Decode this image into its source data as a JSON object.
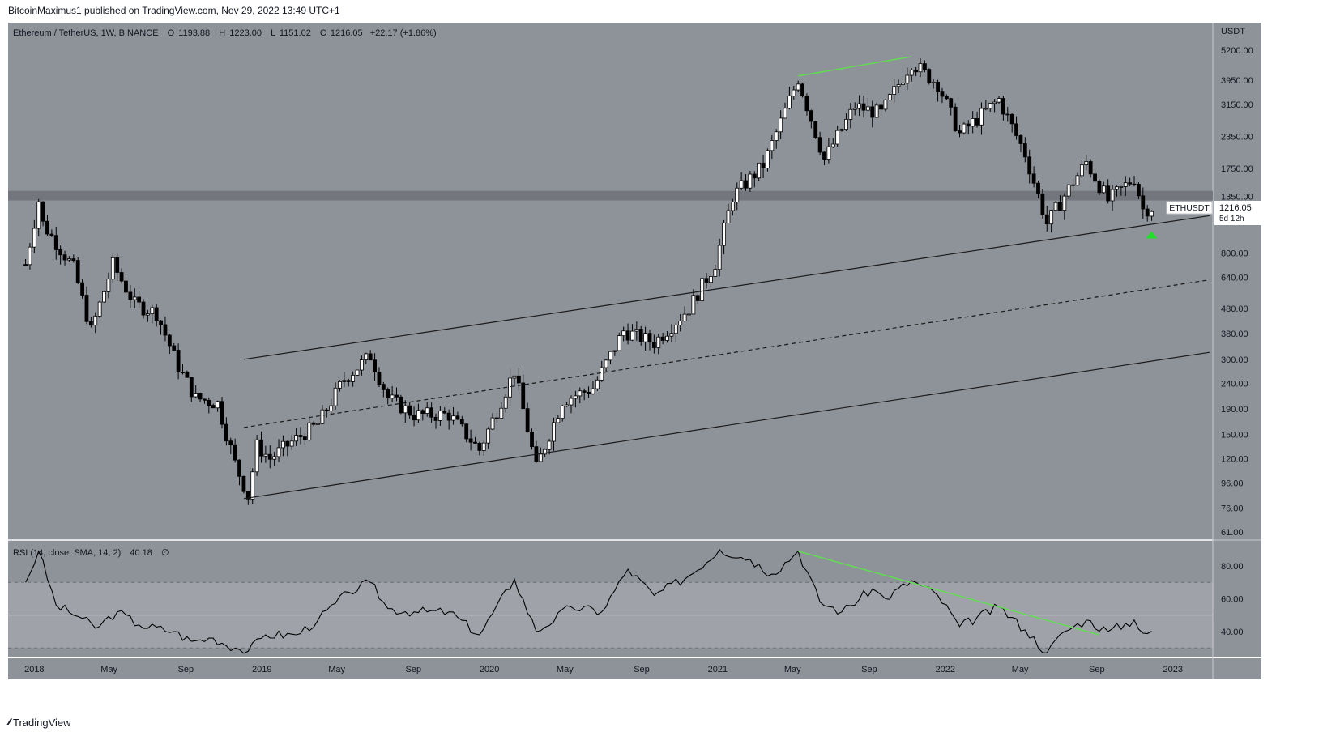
{
  "header": {
    "published_text": "BitcoinMaximus1 published on TradingView.com, Nov 29, 2022 13:49 UTC+1"
  },
  "footer": {
    "brand": "TradingView"
  },
  "legend": {
    "symbol": "Ethereum / TetherUS, 1W, BINANCE",
    "open_label": "O",
    "open": "1193.88",
    "high_label": "H",
    "high": "1223.00",
    "low_label": "L",
    "low": "1151.02",
    "close_label": "C",
    "close": "1216.05",
    "change": "+22.17 (+1.86%)"
  },
  "price_axis": {
    "currency": "USDT",
    "ticks": [
      "5200.00",
      "3950.00",
      "3150.00",
      "2350.00",
      "1750.00",
      "1350.00",
      "800.00",
      "640.00",
      "480.00",
      "380.00",
      "300.00",
      "240.00",
      "190.00",
      "150.00",
      "120.00",
      "96.00",
      "76.00",
      "61.00"
    ]
  },
  "price_badge": {
    "symbol": "ETHUSDT",
    "price": "1216.05",
    "countdown": "5d 12h"
  },
  "rsi": {
    "legend": "RSI (14, close, SMA, 14, 2)",
    "value": "40.18",
    "extra": "∅",
    "ticks": [
      "80.00",
      "60.00",
      "40.00"
    ],
    "upper_band": 70,
    "middle_line": 50,
    "lower_band": 30
  },
  "time_axis": {
    "labels": [
      "2018",
      "May",
      "Sep",
      "2019",
      "May",
      "Sep",
      "2020",
      "May",
      "Sep",
      "2021",
      "May",
      "Sep",
      "2022",
      "May",
      "Sep",
      "2023"
    ]
  },
  "colors": {
    "pane_bg": "#8e9299",
    "resistance_zone": "#70737a",
    "channel_line": "#1a1a1a",
    "divergence": "#5fe04f",
    "arrow": "#22e028",
    "rsi_band_fill": "#9fa2a8"
  },
  "chart_data": {
    "type": "candlestick",
    "timeframe": "1W",
    "scale": "log",
    "ylim": [
      58,
      6000
    ],
    "ohlc_sampled_closes": [
      {
        "date": "2017-12-18",
        "close": 720
      },
      {
        "date": "2018-01-08",
        "close": 1300
      },
      {
        "date": "2018-01-15",
        "close": 1050
      },
      {
        "date": "2018-02-05",
        "close": 880
      },
      {
        "date": "2018-03-05",
        "close": 700
      },
      {
        "date": "2018-04-02",
        "close": 390
      },
      {
        "date": "2018-05-07",
        "close": 720
      },
      {
        "date": "2018-06-11",
        "close": 500
      },
      {
        "date": "2018-07-16",
        "close": 460
      },
      {
        "date": "2018-08-20",
        "close": 280
      },
      {
        "date": "2018-09-17",
        "close": 210
      },
      {
        "date": "2018-10-22",
        "close": 200
      },
      {
        "date": "2018-11-19",
        "close": 115
      },
      {
        "date": "2018-12-10",
        "close": 85
      },
      {
        "date": "2018-12-24",
        "close": 135
      },
      {
        "date": "2019-01-14",
        "close": 120
      },
      {
        "date": "2019-02-18",
        "close": 140
      },
      {
        "date": "2019-04-01",
        "close": 165
      },
      {
        "date": "2019-05-13",
        "close": 250
      },
      {
        "date": "2019-06-24",
        "close": 310
      },
      {
        "date": "2019-07-22",
        "close": 210
      },
      {
        "date": "2019-09-02",
        "close": 180
      },
      {
        "date": "2019-10-28",
        "close": 180
      },
      {
        "date": "2019-12-16",
        "close": 130
      },
      {
        "date": "2020-02-10",
        "close": 270
      },
      {
        "date": "2020-03-16",
        "close": 110
      },
      {
        "date": "2020-04-27",
        "close": 205
      },
      {
        "date": "2020-06-15",
        "close": 230
      },
      {
        "date": "2020-08-03",
        "close": 390
      },
      {
        "date": "2020-09-21",
        "close": 350
      },
      {
        "date": "2020-11-16",
        "close": 480
      },
      {
        "date": "2020-12-28",
        "close": 730
      },
      {
        "date": "2021-01-25",
        "close": 1350
      },
      {
        "date": "2021-03-15",
        "close": 1800
      },
      {
        "date": "2021-05-10",
        "close": 4000
      },
      {
        "date": "2021-06-21",
        "close": 1900
      },
      {
        "date": "2021-08-09",
        "close": 3100
      },
      {
        "date": "2021-09-20",
        "close": 2900
      },
      {
        "date": "2021-11-08",
        "close": 4650
      },
      {
        "date": "2021-12-20",
        "close": 3800
      },
      {
        "date": "2022-01-24",
        "close": 2400
      },
      {
        "date": "2022-03-28",
        "close": 3300
      },
      {
        "date": "2022-05-09",
        "close": 2000
      },
      {
        "date": "2022-06-13",
        "close": 1050
      },
      {
        "date": "2022-07-18",
        "close": 1450
      },
      {
        "date": "2022-08-15",
        "close": 1850
      },
      {
        "date": "2022-09-19",
        "close": 1300
      },
      {
        "date": "2022-10-31",
        "close": 1600
      },
      {
        "date": "2022-11-14",
        "close": 1200
      },
      {
        "date": "2022-11-28",
        "close": 1216.05
      }
    ],
    "annotations": {
      "resistance_zone": [
        1300,
        1420
      ],
      "channel_upper": [
        {
          "date": "2018-12-03",
          "price": 300
        },
        {
          "date": "2023-03-01",
          "price": 1130
        }
      ],
      "channel_mid": [
        {
          "date": "2018-12-03",
          "price": 160
        },
        {
          "date": "2023-03-01",
          "price": 625
        }
      ],
      "channel_lower": [
        {
          "date": "2018-12-03",
          "price": 83
        },
        {
          "date": "2023-03-01",
          "price": 320
        }
      ],
      "price_divergence": [
        {
          "date": "2021-05-10",
          "price": 4100
        },
        {
          "date": "2021-11-08",
          "price": 4900
        }
      ],
      "rsi_divergence": [
        {
          "date": "2021-05-10",
          "rsi": 89
        },
        {
          "date": "2022-09-05",
          "rsi": 38
        }
      ],
      "bullish_arrow": {
        "date": "2022-11-28",
        "price": 950
      }
    },
    "rsi_series": [
      {
        "date": "2017-12-18",
        "rsi": 70
      },
      {
        "date": "2018-01-08",
        "rsi": 89
      },
      {
        "date": "2018-02-05",
        "rsi": 56
      },
      {
        "date": "2018-03-19",
        "rsi": 48
      },
      {
        "date": "2018-04-09",
        "rsi": 42
      },
      {
        "date": "2018-05-14",
        "rsi": 52
      },
      {
        "date": "2018-06-18",
        "rsi": 44
      },
      {
        "date": "2018-08-13",
        "rsi": 40
      },
      {
        "date": "2018-09-10",
        "rsi": 34
      },
      {
        "date": "2018-10-15",
        "rsi": 36
      },
      {
        "date": "2018-11-19",
        "rsi": 30
      },
      {
        "date": "2018-12-10",
        "rsi": 28
      },
      {
        "date": "2019-01-07",
        "rsi": 38
      },
      {
        "date": "2019-02-25",
        "rsi": 38
      },
      {
        "date": "2019-04-01",
        "rsi": 47
      },
      {
        "date": "2019-05-20",
        "rsi": 64
      },
      {
        "date": "2019-06-24",
        "rsi": 70
      },
      {
        "date": "2019-07-22",
        "rsi": 54
      },
      {
        "date": "2019-09-02",
        "rsi": 52
      },
      {
        "date": "2019-10-28",
        "rsi": 52
      },
      {
        "date": "2019-12-16",
        "rsi": 38
      },
      {
        "date": "2020-02-10",
        "rsi": 72
      },
      {
        "date": "2020-03-16",
        "rsi": 40
      },
      {
        "date": "2020-05-11",
        "rsi": 55
      },
      {
        "date": "2020-06-29",
        "rsi": 52
      },
      {
        "date": "2020-08-10",
        "rsi": 78
      },
      {
        "date": "2020-09-21",
        "rsi": 62
      },
      {
        "date": "2020-11-16",
        "rsi": 74
      },
      {
        "date": "2021-01-04",
        "rsi": 90
      },
      {
        "date": "2021-02-22",
        "rsi": 84
      },
      {
        "date": "2021-03-29",
        "rsi": 75
      },
      {
        "date": "2021-05-10",
        "rsi": 89
      },
      {
        "date": "2021-06-14",
        "rsi": 58
      },
      {
        "date": "2021-07-19",
        "rsi": 52
      },
      {
        "date": "2021-09-06",
        "rsi": 66
      },
      {
        "date": "2021-09-27",
        "rsi": 60
      },
      {
        "date": "2021-11-08",
        "rsi": 71
      },
      {
        "date": "2021-12-20",
        "rsi": 62
      },
      {
        "date": "2022-01-24",
        "rsi": 43
      },
      {
        "date": "2022-03-28",
        "rsi": 55
      },
      {
        "date": "2022-05-09",
        "rsi": 41
      },
      {
        "date": "2022-06-13",
        "rsi": 27
      },
      {
        "date": "2022-07-11",
        "rsi": 40
      },
      {
        "date": "2022-08-15",
        "rsi": 47
      },
      {
        "date": "2022-09-19",
        "rsi": 40
      },
      {
        "date": "2022-10-31",
        "rsi": 47
      },
      {
        "date": "2022-11-14",
        "rsi": 39
      },
      {
        "date": "2022-11-28",
        "rsi": 40.18
      }
    ]
  }
}
